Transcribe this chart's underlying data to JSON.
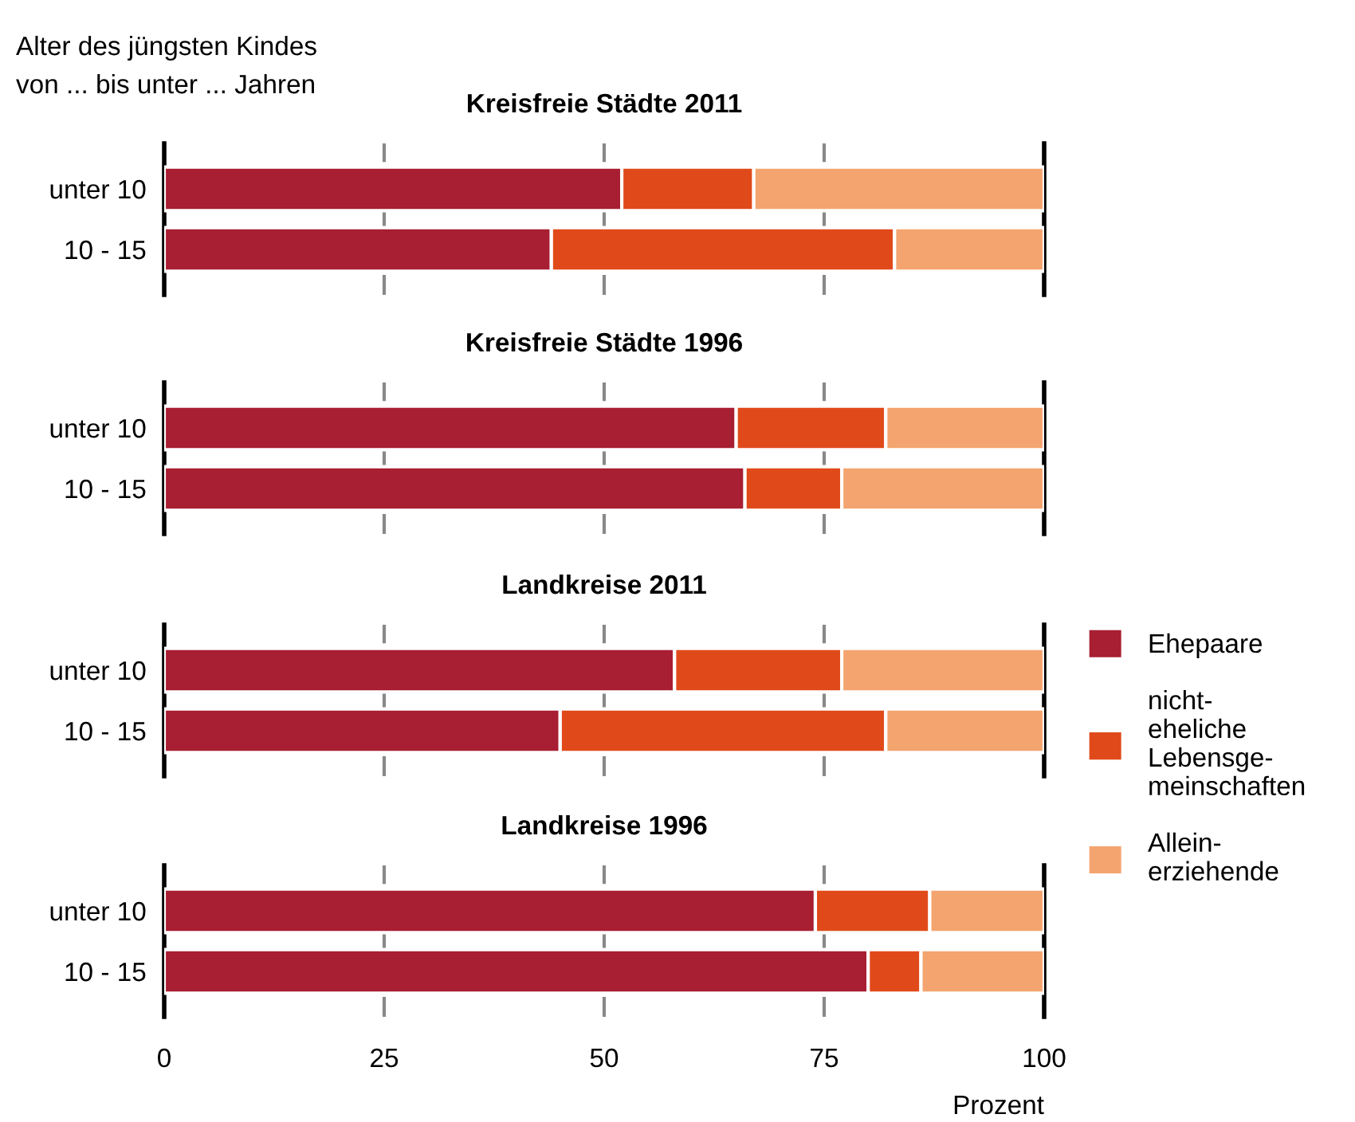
{
  "chart_data": [
    {
      "type": "bar",
      "orientation": "horizontal",
      "stacked": true,
      "title": "Kreisfreie Städte 2011",
      "ylabel": "Alter des jüngsten Kindes\nvon ... bis unter ... Jahren",
      "categories": [
        "unter 10",
        "10 - 15"
      ],
      "series": [
        {
          "color": "#a81e32",
          "values": [
            52,
            44
          ]
        },
        {
          "color": "#e04a1a",
          "values": [
            15,
            39
          ]
        },
        {
          "color": "#f4a46e",
          "values": [
            33,
            17
          ]
        }
      ],
      "xlim": [
        0,
        100
      ],
      "xticks": [
        0,
        25,
        50,
        75,
        100
      ],
      "grid": "x",
      "tick_labels": "y"
    },
    {
      "type": "bar",
      "orientation": "horizontal",
      "stacked": true,
      "title": "Kreisfreie Städte 1996",
      "categories": [
        "unter 10",
        "10 - 15"
      ],
      "series": [
        {
          "color": "#a81e32",
          "values": [
            65,
            66
          ]
        },
        {
          "color": "#e04a1a",
          "values": [
            17,
            11
          ]
        },
        {
          "color": "#f4a46e",
          "values": [
            18,
            23
          ]
        }
      ],
      "xlim": [
        0,
        100
      ],
      "xticks": [
        0,
        25,
        50,
        75,
        100
      ],
      "grid": "x",
      "tick_labels": "y"
    },
    {
      "type": "bar",
      "orientation": "horizontal",
      "stacked": true,
      "title": "Landkreise 2011",
      "categories": [
        "unter 10",
        "10 - 15"
      ],
      "series": [
        {
          "name": "Ehepaare",
          "color": "#a81e32",
          "values": [
            58,
            45
          ]
        },
        {
          "name": "nicht-\neheliche\nLebensge-\nmeinschaften",
          "color": "#e04a1a",
          "values": [
            19,
            37
          ]
        },
        {
          "name": "Allein-\nerziehende",
          "color": "#f4a46e",
          "values": [
            23,
            18
          ]
        }
      ],
      "xlim": [
        0,
        100
      ],
      "xticks": [
        0,
        25,
        50,
        75,
        100
      ],
      "grid": "x",
      "tick_labels": "y",
      "legend": "right"
    },
    {
      "type": "bar",
      "orientation": "horizontal",
      "stacked": true,
      "title": "Landkreise 1996",
      "xlabel": "Prozent",
      "categories": [
        "unter 10",
        "10 - 15"
      ],
      "series": [
        {
          "color": "#a81e32",
          "values": [
            74,
            80
          ]
        },
        {
          "color": "#e04a1a",
          "values": [
            13,
            6
          ]
        },
        {
          "color": "#f4a46e",
          "values": [
            13,
            14
          ]
        }
      ],
      "xlim": [
        0,
        100
      ],
      "xticks": [
        0,
        25,
        50,
        75,
        100
      ],
      "grid": "x"
    }
  ]
}
